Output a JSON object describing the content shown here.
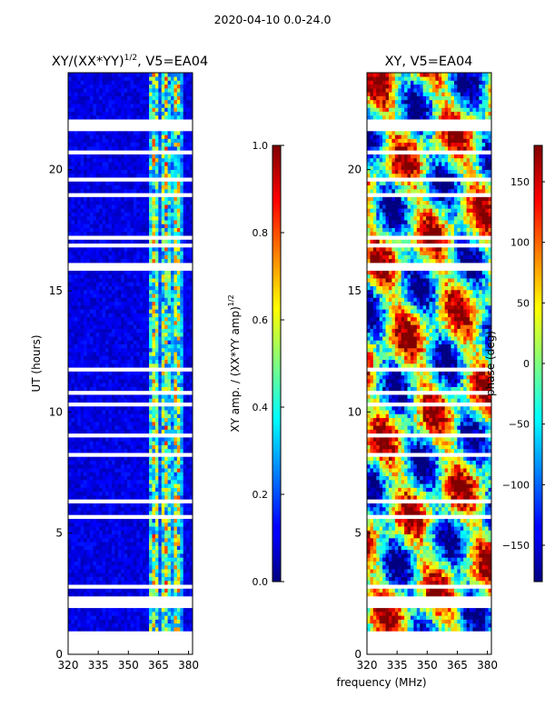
{
  "figure": {
    "suptitle": "2020-04-10 0.0-24.0",
    "shared_xlabel": "frequency (MHz)"
  },
  "chart_data": [
    {
      "type": "heatmap",
      "title_main": "XY/(XX*YY)",
      "title_sup": "1/2",
      "title_rest": ", V5=EA04",
      "xlabel": "",
      "ylabel": "UT (hours)",
      "xlim": [
        320,
        382
      ],
      "ylim": [
        0,
        24
      ],
      "xticks": [
        320,
        335,
        350,
        365,
        380
      ],
      "yticks": [
        0,
        5,
        10,
        15,
        20
      ],
      "colorbar": {
        "label_main": "XY amp. / (XX*YY amp)",
        "label_sup": "1/2",
        "range": [
          0.0,
          1.0
        ],
        "ticks": [
          "0.0",
          "0.2",
          "0.4",
          "0.6",
          "0.8",
          "1.0"
        ],
        "colormap": "jet"
      },
      "flagged_gaps_ut": [
        [
          0.2,
          0.55
        ],
        [
          2.0,
          2.45
        ],
        [
          8.1,
          8.3
        ],
        [
          21.6,
          22.0
        ]
      ],
      "high_amplitude_band_mhz": [
        360,
        378
      ]
    },
    {
      "type": "heatmap",
      "title_main": "XY, V5=EA04",
      "xlabel": "frequency (MHz)",
      "ylabel": "",
      "xlim": [
        320,
        382
      ],
      "ylim": [
        0,
        24
      ],
      "xticks": [
        320,
        335,
        350,
        365,
        380
      ],
      "yticks": [
        0,
        5,
        10,
        15,
        20
      ],
      "colorbar": {
        "label_main": "phase (deg)",
        "range": [
          -180,
          180
        ],
        "ticks": [
          "−150",
          "−100",
          "−50",
          "0",
          "50",
          "100",
          "150"
        ],
        "colormap": "jet"
      },
      "flagged_gaps_ut": [
        [
          0.2,
          0.55
        ],
        [
          2.0,
          2.45
        ],
        [
          8.1,
          8.3
        ],
        [
          21.6,
          22.0
        ]
      ]
    }
  ]
}
